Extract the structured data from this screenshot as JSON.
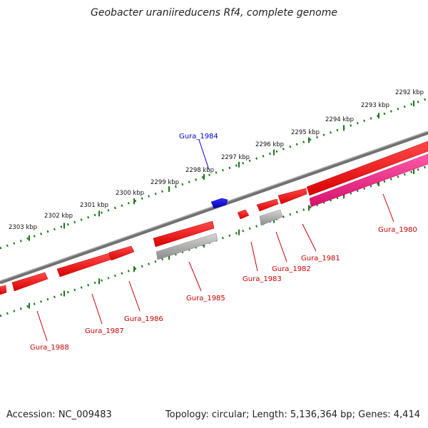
{
  "title": "Geobacter uraniireducens Rf4, complete genome",
  "footer": {
    "accession": "Accession: NC_009483",
    "stats": "Topology: circular; Length: 5,136,364 bp; Genes: 4,414"
  },
  "colors": {
    "background": "#ffffff",
    "backbone": "#808080",
    "tick_ruler": "#1a7a1a",
    "gene_forward": "#ff0000",
    "gene_reverse": "#ff0000",
    "gene_grey": "#b0b0b0",
    "gene_pink": "#ff1493",
    "gene_blue": "#0000ee",
    "label_red": "#cc0000",
    "label_blue": "#0000cc"
  },
  "ticks": [
    "2292 kbp",
    "2293 kbp",
    "2294 kbp",
    "2295 kbp",
    "2296 kbp",
    "2297 kbp",
    "2298 kbp",
    "2299 kbp",
    "2300 kbp",
    "2301 kbp",
    "2302 kbp",
    "2303 kbp"
  ],
  "genes": [
    {
      "label": "Gura_1980",
      "color": "pink"
    },
    {
      "label": "Gura_1981",
      "color": "red"
    },
    {
      "label": "Gura_1982",
      "color": "grey"
    },
    {
      "label": "Gura_1983",
      "color": "red"
    },
    {
      "label": "Gura_1984",
      "color": "blue"
    },
    {
      "label": "Gura_1985",
      "color": "grey"
    },
    {
      "label": "Gura_1986",
      "color": "red"
    },
    {
      "label": "Gura_1987",
      "color": "red"
    },
    {
      "label": "Gura_1988",
      "color": "red"
    }
  ]
}
